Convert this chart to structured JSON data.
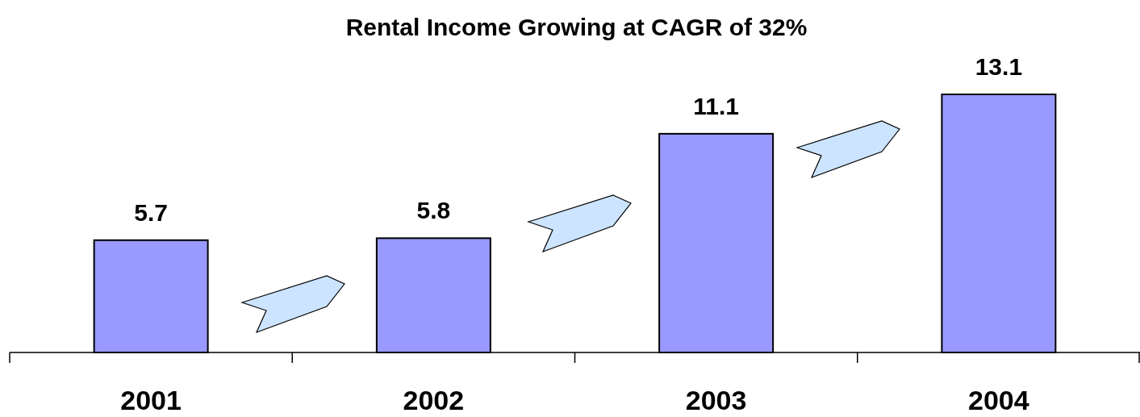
{
  "chart_data": {
    "type": "bar",
    "title": "Rental Income Growing at CAGR of 32%",
    "categories": [
      "2001",
      "2002",
      "2003",
      "2004"
    ],
    "values": [
      5.7,
      5.8,
      11.1,
      13.1
    ],
    "color": "#9999ff",
    "data_labels": true
  }
}
